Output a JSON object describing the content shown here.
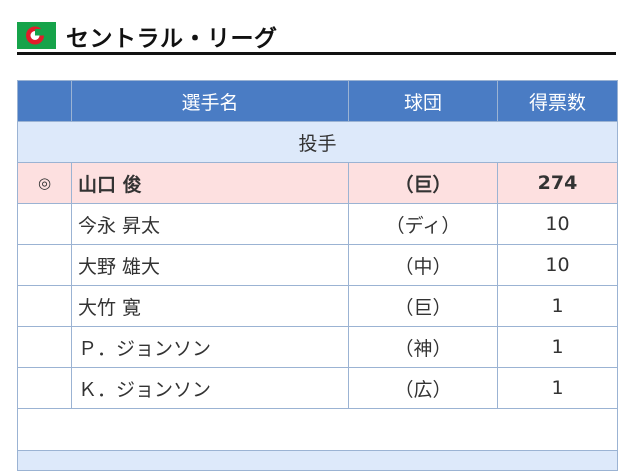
{
  "header": {
    "league_title": "セントラル・リーグ"
  },
  "table": {
    "columns": [
      "",
      "選手名",
      "球団",
      "得票数"
    ],
    "section_label": "投手",
    "rows": [
      {
        "mark": "◎",
        "name": "山口 俊",
        "team": "（巨）",
        "votes": "274"
      },
      {
        "mark": "",
        "name": "今永 昇太",
        "team": "（ディ）",
        "votes": "10"
      },
      {
        "mark": "",
        "name": "大野 雄大",
        "team": "（中）",
        "votes": "10"
      },
      {
        "mark": "",
        "name": "大竹 寛",
        "team": "（巨）",
        "votes": "1"
      },
      {
        "mark": "",
        "name": "Ｐ．ジョンソン",
        "team": "（神）",
        "votes": "1"
      },
      {
        "mark": "",
        "name": "Ｋ．ジョンソン",
        "team": "（広）",
        "votes": "1"
      }
    ]
  },
  "colors": {
    "header_blue": "#4a7cc4",
    "section_light_blue": "#dde9fa",
    "top_row_pink": "#fde0e0",
    "logo_green": "#16a34a",
    "logo_red": "#e11d2a"
  },
  "icons": {
    "logo": "central-league-logo-icon"
  }
}
